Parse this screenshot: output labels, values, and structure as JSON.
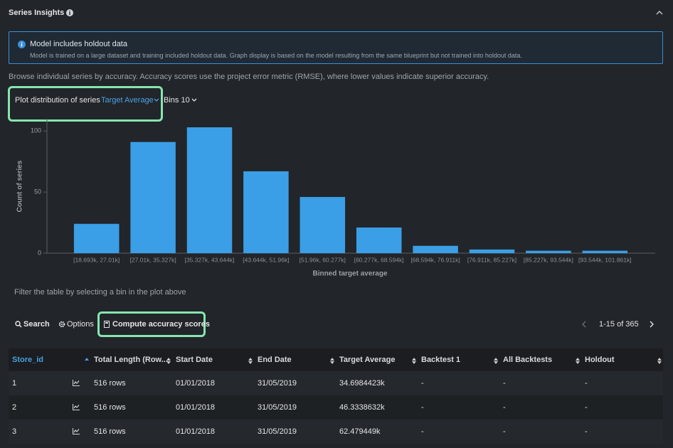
{
  "header": {
    "title": "Series Insights"
  },
  "notice": {
    "title": "Model includes holdout data",
    "text": "Model is trained on a large dataset and training included holdout data. Graph display is based on the model resulting from the same blueprint but not trained into holdout data."
  },
  "description": "Browse individual series by accuracy. Accuracy scores use the project error metric (RMSE), where lower values indicate superior accuracy.",
  "controls": {
    "plot_label": "Plot distribution of series",
    "plot_selection": "Target Average",
    "bins": "Bins 10"
  },
  "chart": {
    "type": "bar",
    "xlabel": "Binned target average",
    "ylabel": "Count of series",
    "categories": [
      "[18.693k, 27.01k]",
      "[27.01k, 35.327k]",
      "[35.327k, 43.644k]",
      "[43.644k, 51.96k]",
      "[51.96k, 60.277k]",
      "[60.277k, 68.594k]",
      "[68.594k, 76.911k]",
      "[76.911k, 85.227k]",
      "[85.227k, 93.544k]",
      "[93.544k, 101.861k]"
    ],
    "values": [
      24,
      91,
      103,
      67,
      46,
      21,
      6,
      3,
      2,
      2
    ],
    "color": "#3a9fe6",
    "ylim": [
      0,
      110
    ],
    "yticks": [
      0,
      50,
      100
    ]
  },
  "filter_hint": "Filter the table by selecting a bin in the plot above",
  "toolbar": {
    "search": "Search",
    "options": "Options",
    "compute": "Compute accuracy scores",
    "pagination": "1-15 of 365"
  },
  "table": {
    "columns": [
      "Store_id",
      "Total Length (Row...",
      "Start Date",
      "End Date",
      "Target Average",
      "Backtest 1",
      "All Backtests",
      "Holdout"
    ],
    "rows": [
      [
        "1",
        "516 rows",
        "01/01/2018",
        "31/05/2019",
        "34.6984423k",
        "-",
        "-",
        "-"
      ],
      [
        "2",
        "516 rows",
        "01/01/2018",
        "31/05/2019",
        "46.3338632k",
        "-",
        "-",
        "-"
      ],
      [
        "3",
        "516 rows",
        "01/01/2018",
        "31/05/2019",
        "62.479449k",
        "-",
        "-",
        "-"
      ]
    ]
  }
}
